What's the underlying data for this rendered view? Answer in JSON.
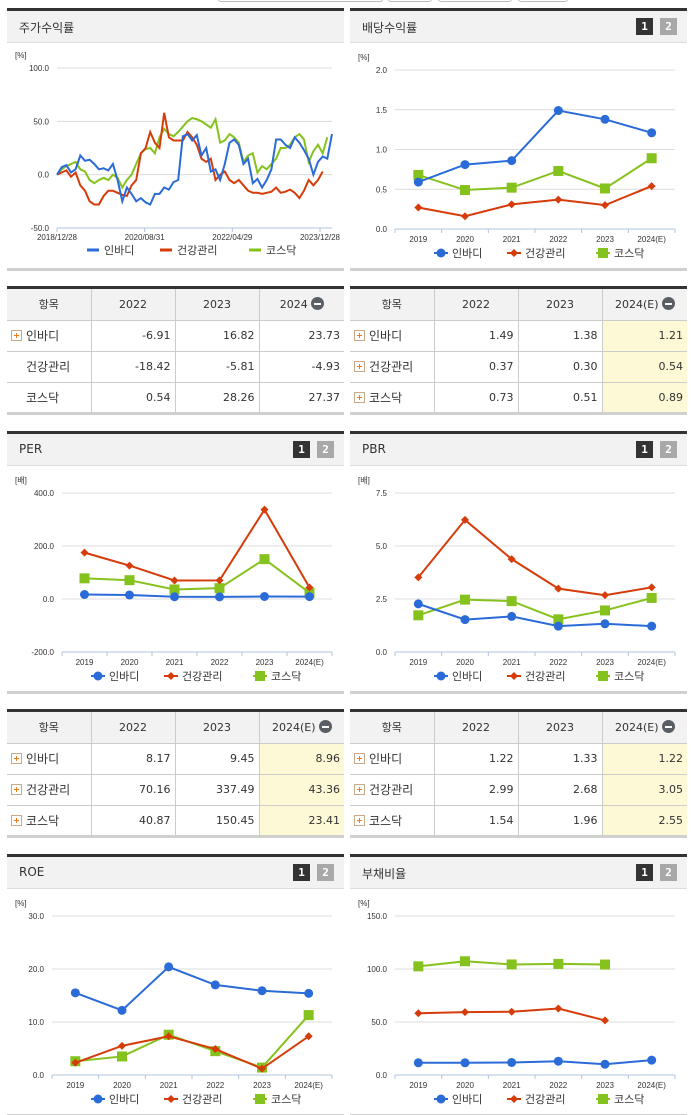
{
  "colors": {
    "invadi": "#2a6bd8",
    "health": "#d63c0a",
    "kosdaq": "#86c21d",
    "header_dark": "#333333",
    "estimate_bg": "#fdf9d6"
  },
  "legend": [
    "인바디",
    "건강관리",
    "코스닥"
  ],
  "panels": {
    "stock_return": {
      "title": "주가수익률",
      "unit": "[%]",
      "y_ticks": [
        "100.0",
        "50.0",
        "0.0",
        "-50.0"
      ],
      "x_ticks": [
        "2018/12/28",
        "2020/08/31",
        "2022/04/29",
        "2023/12/28"
      ]
    },
    "dividend": {
      "title": "배당수익률",
      "tab1": "1",
      "tab2": "2",
      "unit": "[%]",
      "y_ticks": [
        "2.0",
        "1.5",
        "1.0",
        "0.5",
        "0.0"
      ],
      "x_ticks": [
        "2019",
        "2020",
        "2021",
        "2022",
        "2023",
        "2024(E)"
      ]
    },
    "per": {
      "title": "PER",
      "tab1": "1",
      "tab2": "2",
      "unit": "[배]",
      "y_ticks": [
        "400.0",
        "200.0",
        "0.0",
        "-200.0"
      ],
      "x_ticks": [
        "2019",
        "2020",
        "2021",
        "2022",
        "2023",
        "2024(E)"
      ]
    },
    "pbr": {
      "title": "PBR",
      "tab1": "1",
      "tab2": "2",
      "unit": "[배]",
      "y_ticks": [
        "7.5",
        "5.0",
        "2.5",
        "0.0"
      ],
      "x_ticks": [
        "2019",
        "2020",
        "2021",
        "2022",
        "2023",
        "2024(E)"
      ]
    },
    "roe": {
      "title": "ROE",
      "tab1": "1",
      "tab2": "2",
      "unit": "[%]",
      "y_ticks": [
        "30.0",
        "20.0",
        "10.0",
        "0.0"
      ],
      "x_ticks": [
        "2019",
        "2020",
        "2021",
        "2022",
        "2023",
        "2024(E)"
      ]
    },
    "debt": {
      "title": "부채비율",
      "tab1": "1",
      "tab2": "2",
      "unit": "[%]",
      "y_ticks": [
        "150.0",
        "100.0",
        "50.0",
        "0.0"
      ],
      "x_ticks": [
        "2019",
        "2020",
        "2021",
        "2022",
        "2023",
        "2024(E)"
      ]
    }
  },
  "tables": {
    "stock_return": {
      "headers": [
        "항목",
        "2022",
        "2023",
        "2024"
      ],
      "rows": [
        {
          "name": "인바디",
          "values": [
            "-6.91",
            "16.82",
            "23.73"
          ]
        },
        {
          "name": "건강관리",
          "values": [
            "-18.42",
            "-5.81",
            "-4.93"
          ]
        },
        {
          "name": "코스닥",
          "values": [
            "0.54",
            "28.26",
            "27.37"
          ]
        }
      ]
    },
    "dividend": {
      "headers": [
        "항목",
        "2022",
        "2023",
        "2024(E)"
      ],
      "rows": [
        {
          "name": "인바디",
          "values": [
            "1.49",
            "1.38",
            "1.21"
          ]
        },
        {
          "name": "건강관리",
          "values": [
            "0.37",
            "0.30",
            "0.54"
          ]
        },
        {
          "name": "코스닥",
          "values": [
            "0.73",
            "0.51",
            "0.89"
          ]
        }
      ]
    },
    "per": {
      "headers": [
        "항목",
        "2022",
        "2023",
        "2024(E)"
      ],
      "rows": [
        {
          "name": "인바디",
          "values": [
            "8.17",
            "9.45",
            "8.96"
          ]
        },
        {
          "name": "건강관리",
          "values": [
            "70.16",
            "337.49",
            "43.36"
          ]
        },
        {
          "name": "코스닥",
          "values": [
            "40.87",
            "150.45",
            "23.41"
          ]
        }
      ]
    },
    "pbr": {
      "headers": [
        "항목",
        "2022",
        "2023",
        "2024(E)"
      ],
      "rows": [
        {
          "name": "인바디",
          "values": [
            "1.22",
            "1.33",
            "1.22"
          ]
        },
        {
          "name": "건강관리",
          "values": [
            "2.99",
            "2.68",
            "3.05"
          ]
        },
        {
          "name": "코스닥",
          "values": [
            "1.54",
            "1.96",
            "2.55"
          ]
        }
      ]
    }
  },
  "chart_data": [
    {
      "type": "line",
      "title": "주가수익률",
      "ylabel": "[%]",
      "ylim": [
        -50,
        100
      ],
      "x_ticks": [
        "2018/12/28",
        "2020/08/31",
        "2022/04/29",
        "2023/12/28"
      ],
      "grid": true,
      "legend_position": "bottom",
      "series": [
        {
          "name": "인바디",
          "values": [
            0,
            7,
            9,
            2,
            5,
            18,
            13,
            14,
            10,
            5,
            6,
            4,
            10,
            -5,
            -25,
            -12,
            -18,
            -25,
            -22,
            -26,
            -28,
            -18,
            -18,
            -12,
            -14,
            -7,
            -5,
            36,
            38,
            32,
            37,
            18,
            25,
            3,
            5,
            -5,
            10,
            30,
            33,
            28,
            10,
            15,
            -8,
            -4,
            -12,
            -5,
            5,
            33,
            33,
            28,
            25,
            35,
            30,
            23,
            15,
            0,
            12,
            17,
            15,
            38
          ]
        },
        {
          "name": "건강관리",
          "values": [
            0,
            2,
            4,
            -2,
            2,
            -10,
            -15,
            -25,
            -28,
            -28,
            -20,
            -15,
            -15,
            -17,
            -19,
            -20,
            -10,
            -5,
            20,
            25,
            40,
            30,
            25,
            58,
            35,
            32,
            32,
            32,
            40,
            35,
            28,
            15,
            12,
            15,
            -5,
            0,
            3,
            -5,
            -8,
            -5,
            -10,
            -15,
            -17,
            -17,
            -18,
            -17,
            -16,
            -12,
            -17,
            -16,
            -14,
            -17,
            -22,
            -15,
            -5,
            -10,
            -5,
            3
          ]
        },
        {
          "name": "코스닥",
          "values": [
            0,
            5,
            8,
            10,
            12,
            5,
            3,
            -5,
            -8,
            -5,
            -3,
            -5,
            0,
            -3,
            -12,
            -5,
            0,
            10,
            20,
            24,
            25,
            20,
            35,
            43,
            38,
            36,
            40,
            45,
            50,
            53,
            52,
            50,
            47,
            44,
            52,
            30,
            32,
            38,
            35,
            30,
            12,
            18,
            20,
            2,
            8,
            5,
            10,
            15,
            25,
            25,
            28,
            35,
            38,
            33,
            12,
            22,
            28,
            20,
            35
          ]
        }
      ]
    },
    {
      "type": "line",
      "title": "배당수익률",
      "ylabel": "[%]",
      "ylim": [
        0,
        2
      ],
      "categories": [
        "2019",
        "2020",
        "2021",
        "2022",
        "2023",
        "2024(E)"
      ],
      "series": [
        {
          "name": "인바디",
          "values": [
            0.59,
            0.81,
            0.86,
            1.49,
            1.38,
            1.21
          ]
        },
        {
          "name": "건강관리",
          "values": [
            0.27,
            0.16,
            0.31,
            0.37,
            0.3,
            0.54
          ]
        },
        {
          "name": "코스닥",
          "values": [
            0.68,
            0.49,
            0.52,
            0.73,
            0.51,
            0.89
          ]
        }
      ]
    },
    {
      "type": "line",
      "title": "PER",
      "ylabel": "[배]",
      "ylim": [
        -200,
        400
      ],
      "categories": [
        "2019",
        "2020",
        "2021",
        "2022",
        "2023",
        "2024(E)"
      ],
      "series": [
        {
          "name": "인바디",
          "values": [
            17,
            15,
            8.5,
            8.17,
            9.45,
            8.96
          ]
        },
        {
          "name": "건강관리",
          "values": [
            175,
            126,
            70,
            70.16,
            337.49,
            43.36
          ]
        },
        {
          "name": "코스닥",
          "values": [
            78,
            71,
            36,
            40.87,
            150.45,
            23.41
          ]
        }
      ]
    },
    {
      "type": "line",
      "title": "PBR",
      "ylabel": "[배]",
      "ylim": [
        0,
        7.5
      ],
      "categories": [
        "2019",
        "2020",
        "2021",
        "2022",
        "2023",
        "2024(E)"
      ],
      "series": [
        {
          "name": "인바디",
          "values": [
            2.27,
            1.53,
            1.68,
            1.22,
            1.33,
            1.22
          ]
        },
        {
          "name": "건강관리",
          "values": [
            3.52,
            6.23,
            4.38,
            2.99,
            2.68,
            3.05
          ]
        },
        {
          "name": "코스닥",
          "values": [
            1.73,
            2.47,
            2.4,
            1.54,
            1.96,
            2.55
          ]
        }
      ]
    },
    {
      "type": "line",
      "title": "ROE",
      "ylabel": "[%]",
      "ylim": [
        0,
        30
      ],
      "categories": [
        "2019",
        "2020",
        "2021",
        "2022",
        "2023",
        "2024(E)"
      ],
      "series": [
        {
          "name": "인바디",
          "values": [
            15.5,
            12.2,
            20.4,
            17.0,
            15.9,
            15.4
          ]
        },
        {
          "name": "건강관리",
          "values": [
            2.3,
            5.5,
            7.3,
            4.9,
            1.2,
            7.3
          ]
        },
        {
          "name": "코스닥",
          "values": [
            2.6,
            3.5,
            7.6,
            4.5,
            1.4,
            11.3
          ]
        }
      ]
    },
    {
      "type": "line",
      "title": "부채비율",
      "ylabel": "[%]",
      "ylim": [
        0,
        150
      ],
      "categories": [
        "2019",
        "2020",
        "2021",
        "2022",
        "2023",
        "2024(E)"
      ],
      "series": [
        {
          "name": "인바디",
          "values": [
            11.5,
            11.5,
            11.8,
            13.0,
            10.2,
            14.0
          ]
        },
        {
          "name": "건강관리",
          "values": [
            58.3,
            59.3,
            59.7,
            62.7,
            51.5,
            null
          ]
        },
        {
          "name": "코스닥",
          "values": [
            102.5,
            107.3,
            104.3,
            104.8,
            104.2,
            null
          ]
        }
      ]
    }
  ]
}
